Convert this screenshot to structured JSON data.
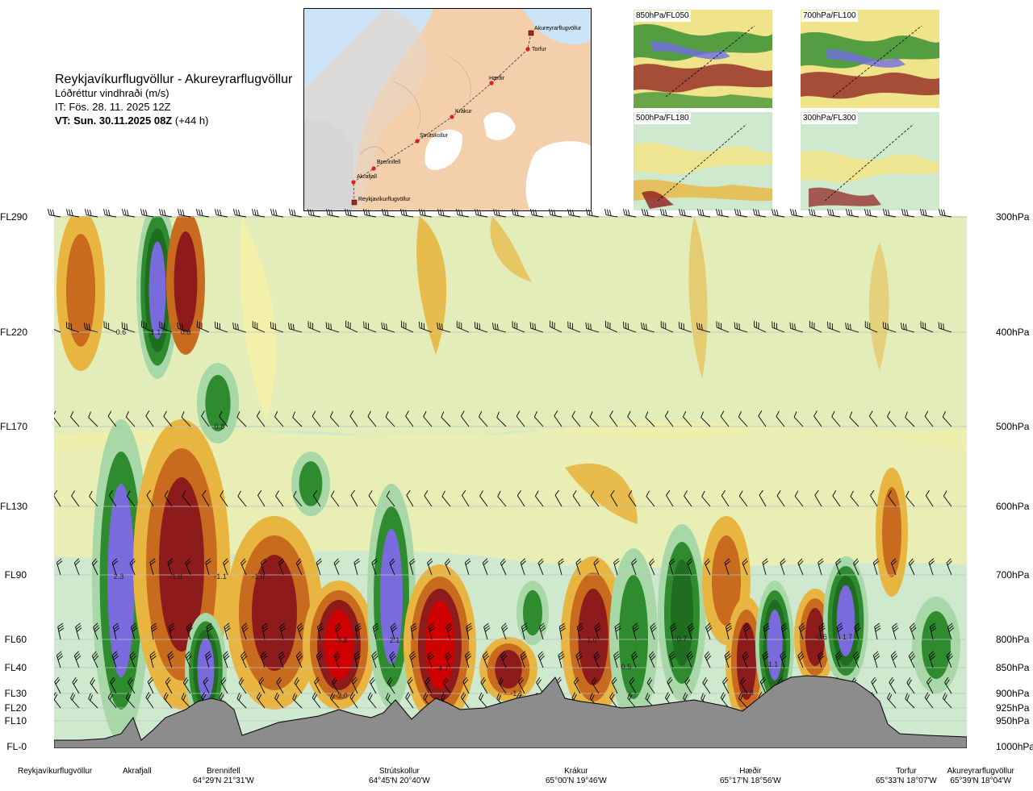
{
  "header": {
    "title": "Reykjavíkurflugvöllur - Akureyrarflugvöllur",
    "subtitle": "Lóðréttur vindhraði (m/s)",
    "initial_time": "IT: Fös. 28. 11. 2025 12Z",
    "valid_time_bold": "VT: Sun. 30.11.2025 08Z",
    "valid_time_offset": "(+44 h)"
  },
  "route_map": {
    "points": [
      {
        "name": "Akureyrarflugvöllur",
        "marker": "square"
      },
      {
        "name": "Torfur",
        "marker": "dot"
      },
      {
        "name": "Hæðir",
        "marker": "dot"
      },
      {
        "name": "Krákur",
        "marker": "dot"
      },
      {
        "name": "Strútskollur",
        "marker": "dot"
      },
      {
        "name": "Brennifell",
        "marker": "dot"
      },
      {
        "name": "Akrafjall",
        "marker": "dot"
      },
      {
        "name": "Reykjavíkurflugvöllur",
        "marker": "square"
      }
    ]
  },
  "thumbnails": [
    {
      "label": "850hPa/FL050"
    },
    {
      "label": "700hPa/FL100"
    },
    {
      "label": "500hPa/FL180"
    },
    {
      "label": "300hPa/FL300"
    }
  ],
  "colors": {
    "terrain": "#8c8c8c",
    "background": "#cfe9cf",
    "strong_down": "#d00000",
    "down": "#8e1b1b",
    "weak_down": "#c86b1e",
    "slight_down": "#e8b640",
    "yellow": "#f4f0a8",
    "slight_up": "#a8d7a8",
    "up": "#2e8b2e",
    "strong_up": "#7a6bdc"
  },
  "chart_data": {
    "type": "heatmap",
    "title": "Lóðréttur vindhraði (m/s)",
    "y_left_levels": [
      "FL290",
      "FL220",
      "FL170",
      "FL130",
      "FL90",
      "FL60",
      "FL40",
      "FL30",
      "FL20",
      "FL10",
      "FL-0"
    ],
    "y_right_levels": [
      "300hPa",
      "400hPa",
      "500hPa",
      "600hPa",
      "700hPa",
      "800hPa",
      "850hPa",
      "900hPa",
      "925hPa",
      "950hPa",
      "1000hPa"
    ],
    "locations": [
      {
        "name": "Reykjavíkurflugvöllur",
        "coord": ""
      },
      {
        "name": "Akrafjall",
        "coord": ""
      },
      {
        "name": "Brennifell",
        "coord": "64°29'N 21°31'W"
      },
      {
        "name": "Strútskollur",
        "coord": "64°45'N 20°40'W"
      },
      {
        "name": "Krákur",
        "coord": "65°00'N 19°46'W"
      },
      {
        "name": "Hæðir",
        "coord": "65°17'N 18°56'W"
      },
      {
        "name": "Torfur",
        "coord": "65°33'N 18°07'W"
      },
      {
        "name": "Akureyrarflugvöllur",
        "coord": "65°39'N 18°04'W"
      }
    ],
    "value_labels": [
      "0.6",
      "1.1",
      "0.8",
      "0.8",
      "2.3",
      "-1.8",
      "-1.1",
      "-1.0",
      "-3.8",
      "2.1",
      "-4.7",
      "-3.0",
      "-1.1",
      "-1.0",
      "0.5",
      "0.7",
      "1.1",
      "-0.8",
      "-0.6",
      "1.7"
    ]
  }
}
